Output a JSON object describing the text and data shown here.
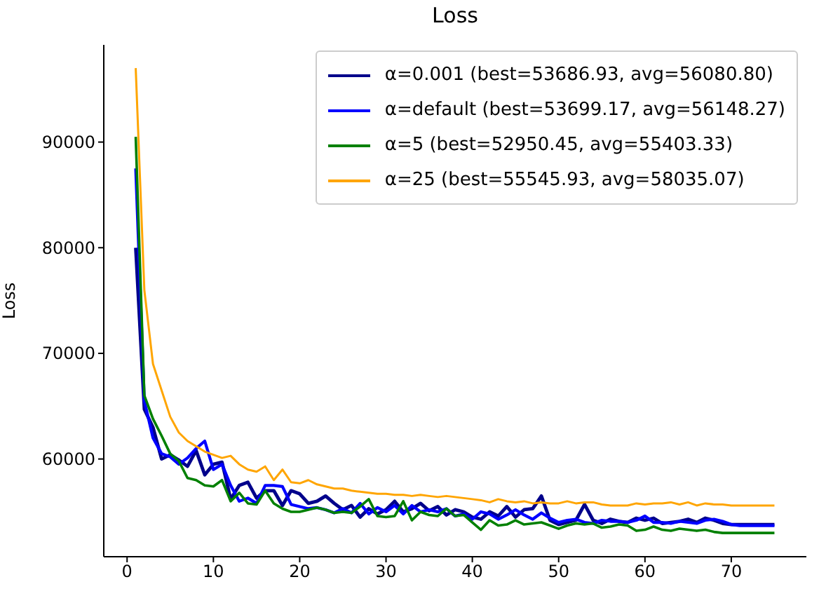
{
  "chart_data": {
    "type": "line",
    "title": "Loss",
    "ylabel": "Loss",
    "x": [
      1,
      2,
      3,
      4,
      5,
      6,
      7,
      8,
      9,
      10,
      11,
      12,
      13,
      14,
      15,
      16,
      17,
      18,
      19,
      20,
      21,
      22,
      23,
      24,
      25,
      26,
      27,
      28,
      29,
      30,
      31,
      32,
      33,
      34,
      35,
      36,
      37,
      38,
      39,
      40,
      41,
      42,
      43,
      44,
      45,
      46,
      47,
      48,
      49,
      50,
      51,
      52,
      53,
      54,
      55,
      56,
      57,
      58,
      59,
      60,
      61,
      62,
      63,
      64,
      65,
      66,
      67,
      68,
      69,
      70,
      71,
      72,
      73,
      74,
      75
    ],
    "series": [
      {
        "name": "α=0.001 (best=53686.93, avg=56080.80)",
        "color": "#00008b",
        "values": [
          80000,
          64700,
          63000,
          60000,
          60400,
          59900,
          59300,
          60800,
          58500,
          59500,
          59700,
          56200,
          57500,
          57800,
          56300,
          57000,
          57000,
          55600,
          57000,
          56700,
          55800,
          56000,
          56500,
          55800,
          55200,
          55600,
          54500,
          55300,
          54800,
          55200,
          56000,
          55000,
          55300,
          55800,
          55100,
          55500,
          54700,
          55200,
          55000,
          54500,
          54300,
          55000,
          54600,
          55500,
          54500,
          55200,
          55300,
          56500,
          54200,
          53800,
          54000,
          54200,
          55700,
          54200,
          53900,
          54300,
          54100,
          54000,
          54400,
          54200,
          54400,
          53900,
          54000,
          54100,
          54300,
          54000,
          54400,
          54200,
          53900,
          53800,
          53800,
          53800,
          53800,
          53800,
          53800
        ]
      },
      {
        "name": "α=default (best=53699.17, avg=56148.27)",
        "color": "#0000ff",
        "values": [
          87500,
          65500,
          62000,
          60500,
          60200,
          59500,
          60100,
          61000,
          61700,
          59000,
          59500,
          57500,
          56000,
          56300,
          55800,
          57500,
          57500,
          57400,
          55700,
          55500,
          55300,
          55400,
          55200,
          54900,
          55300,
          54900,
          55800,
          54800,
          55400,
          55000,
          55600,
          54800,
          55600,
          55000,
          55200,
          55000,
          55300,
          54600,
          54800,
          54300,
          55000,
          54800,
          54300,
          54700,
          55200,
          54700,
          54300,
          54900,
          54400,
          54000,
          54200,
          54300,
          54000,
          53900,
          54200,
          54100,
          54100,
          54000,
          54200,
          54600,
          54000,
          54000,
          53900,
          54100,
          54000,
          53900,
          54200,
          54300,
          54100,
          53800,
          53700,
          53700,
          53700,
          53700,
          53700
        ]
      },
      {
        "name": "α=5 (best=52950.45, avg=55403.33)",
        "color": "#008000",
        "values": [
          90500,
          66000,
          63800,
          62200,
          60500,
          59800,
          58200,
          58000,
          57500,
          57400,
          58000,
          56000,
          56800,
          55800,
          55700,
          57000,
          55800,
          55300,
          55000,
          55000,
          55200,
          55400,
          55200,
          54900,
          55000,
          54900,
          55500,
          56200,
          54600,
          54500,
          54600,
          56000,
          54200,
          55000,
          54700,
          54600,
          55300,
          54600,
          54700,
          54000,
          53300,
          54200,
          53700,
          53800,
          54200,
          53800,
          53900,
          54000,
          53700,
          53400,
          53700,
          53900,
          53800,
          53900,
          53500,
          53600,
          53800,
          53700,
          53200,
          53300,
          53600,
          53300,
          53200,
          53400,
          53300,
          53200,
          53300,
          53100,
          53000,
          53000,
          53000,
          53000,
          53000,
          53000,
          53000
        ]
      },
      {
        "name": "α=25 (best=55545.93, avg=58035.07)",
        "color": "#ffa500",
        "values": [
          97000,
          76000,
          69000,
          66500,
          64000,
          62500,
          61700,
          61200,
          60700,
          60400,
          60100,
          60300,
          59500,
          59000,
          58800,
          59300,
          58000,
          59000,
          57800,
          57700,
          58000,
          57600,
          57400,
          57200,
          57200,
          57000,
          56900,
          56800,
          56700,
          56700,
          56600,
          56600,
          56500,
          56600,
          56500,
          56400,
          56500,
          56400,
          56300,
          56200,
          56100,
          55900,
          56200,
          56000,
          55900,
          56000,
          55800,
          55900,
          55800,
          55800,
          56000,
          55800,
          55900,
          55900,
          55700,
          55600,
          55600,
          55600,
          55800,
          55700,
          55800,
          55800,
          55900,
          55700,
          55900,
          55600,
          55800,
          55700,
          55700,
          55600,
          55600,
          55600,
          55600,
          55600,
          55600
        ]
      }
    ],
    "xlim": [
      -2.7,
      78.7
    ],
    "xticks": [
      0,
      10,
      20,
      30,
      40,
      50,
      60,
      70
    ],
    "ylim": [
      50750,
      99200
    ],
    "yticks": [
      60000,
      70000,
      80000,
      90000
    ],
    "legend": "top right"
  }
}
